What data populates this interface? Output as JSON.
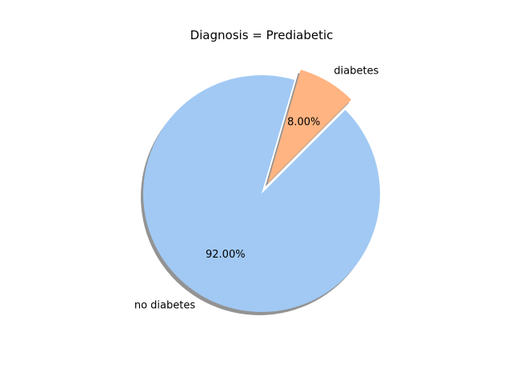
{
  "chart_data": {
    "type": "pie",
    "title": "Diagnosis = Prediabetic",
    "categories": [
      "no diabetes",
      "diabetes"
    ],
    "values": [
      92.0,
      8.0
    ],
    "percent_labels": [
      "92.00%",
      "8.00%"
    ],
    "colors": [
      "#a1c9f4",
      "#ffb482"
    ],
    "explode": [
      0,
      0.1
    ],
    "shadow": true,
    "start_angle_degrees": 45,
    "direction": "counterclockwise",
    "legend": "none"
  }
}
